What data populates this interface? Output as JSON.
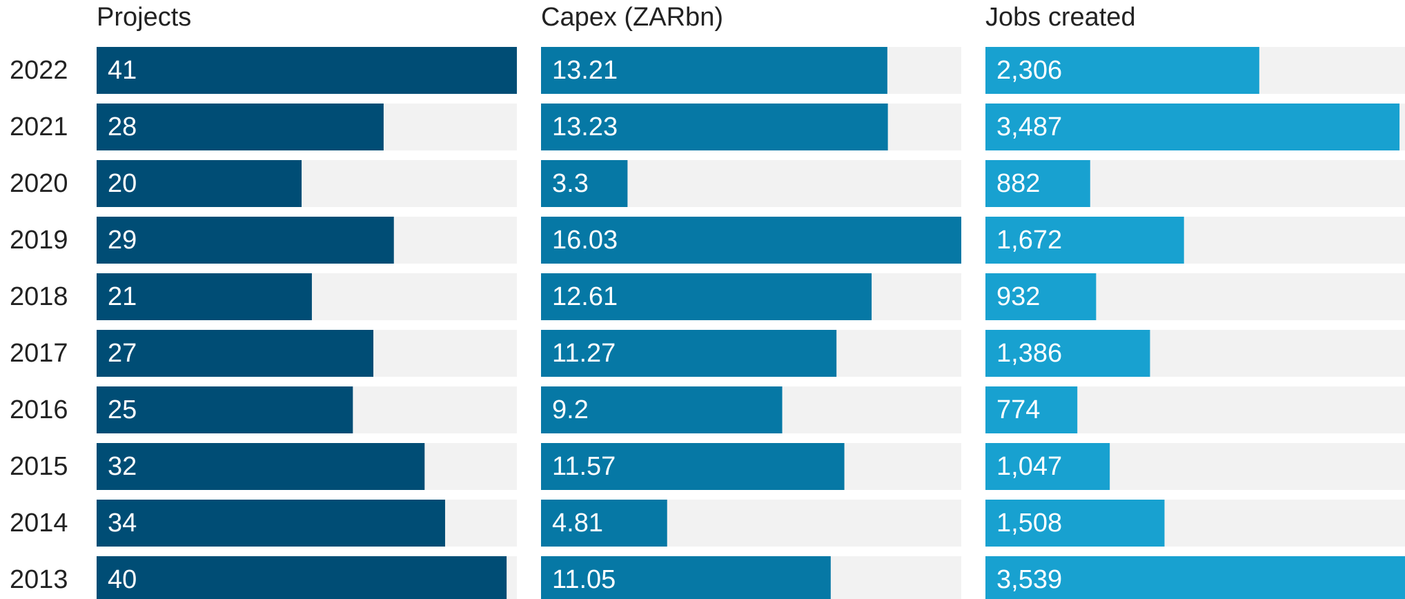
{
  "chart_data": {
    "type": "bar",
    "categories": [
      "2022",
      "2021",
      "2020",
      "2019",
      "2018",
      "2017",
      "2016",
      "2015",
      "2014",
      "2013"
    ],
    "series": [
      {
        "name": "Projects",
        "color": "#004d75",
        "xlim": [
          0,
          41
        ],
        "values": [
          41,
          28,
          20,
          29,
          21,
          27,
          25,
          32,
          34,
          40
        ]
      },
      {
        "name": "Capex (ZARbn)",
        "color": "#0678a5",
        "xlim": [
          0,
          16.03
        ],
        "values": [
          13.21,
          13.23,
          3.3,
          16.03,
          12.61,
          11.27,
          9.2,
          11.57,
          4.81,
          11.05
        ]
      },
      {
        "name": "Jobs created",
        "color": "#18a1d0",
        "xlim": [
          0,
          3539
        ],
        "values": [
          2306,
          3487,
          882,
          1672,
          932,
          1386,
          774,
          1047,
          1508,
          3539
        ],
        "value_labels": [
          "2,306",
          "3,487",
          "882",
          "1,672",
          "932",
          "1,386",
          "774",
          "1,047",
          "1,508",
          "3,539"
        ]
      }
    ]
  }
}
